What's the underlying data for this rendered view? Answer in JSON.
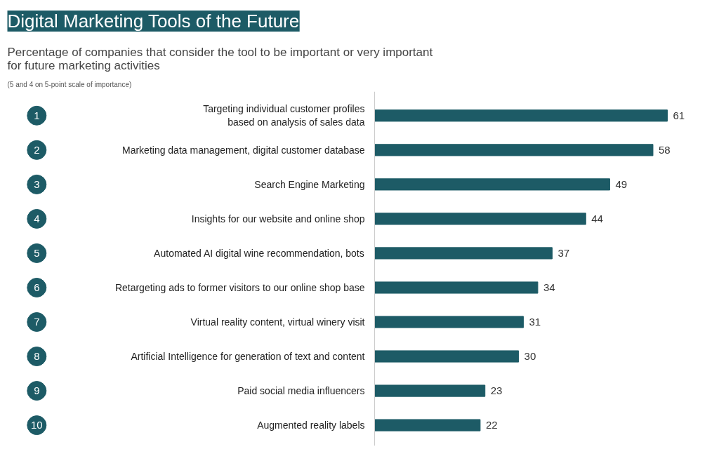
{
  "chart_data": {
    "type": "bar",
    "orientation": "horizontal",
    "title": "Digital Marketing Tools of the Future",
    "subtitle": "Percentage of companies that consider the tool to be important or very important\nfor future marketing activities",
    "categories": [
      "Targeting individual customer profiles\nbased on analysis of sales data",
      "Marketing data management, digital customer database",
      "Search Engine Marketing",
      "Insights for our website and online shop",
      "Automated AI digital wine recommendation, bots",
      "Retargeting ads to former visitors to our online shop base",
      "Virtual reality content, virtual winery visit",
      "Artificial Intelligence for generation of text and content",
      "Paid social media influencers",
      "Augmented reality labels"
    ],
    "values": [
      61,
      58,
      49,
      44,
      37,
      34,
      31,
      30,
      23,
      22
    ],
    "color": "#1d5b66",
    "data_labels": true,
    "annotations": [
      "(5 and 4 on 5-point scale of importance)",
      "1",
      "2",
      "3",
      "4",
      "5",
      "6",
      "7",
      "8",
      "9",
      "10"
    ]
  }
}
